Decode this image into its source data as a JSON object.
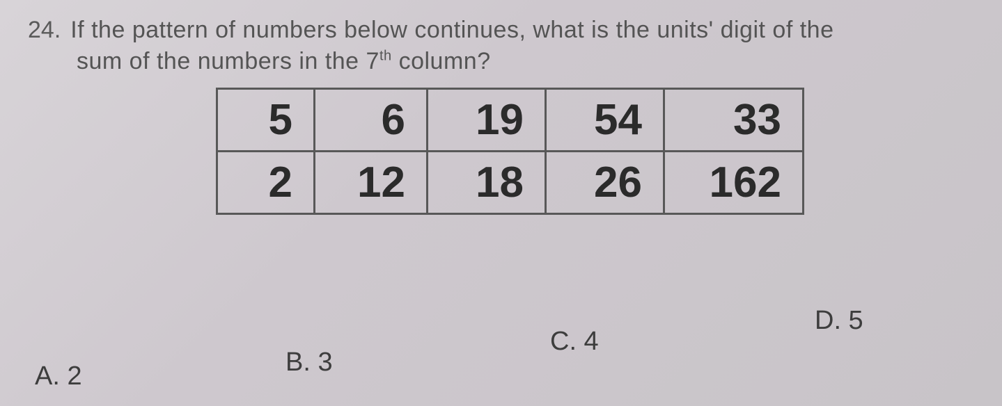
{
  "question": {
    "number": "24.",
    "line1": "If the pattern of numbers below continues, what is the units' digit of the",
    "line2_pre": "sum of the numbers in the 7",
    "line2_sup": "th",
    "line2_post": " column?"
  },
  "table": {
    "border_color": "#585858",
    "cell_font_size": 62,
    "cell_font_weight": 700,
    "cell_text_color": "#2b2b2b",
    "rows": [
      [
        "5",
        "6",
        "19",
        "54",
        "33"
      ],
      [
        "2",
        "12",
        "18",
        "26",
        "162"
      ]
    ]
  },
  "choices": {
    "A": "A. 2",
    "B": "B. 3",
    "C": "C. 4",
    "D": "D. 5"
  },
  "background_gradient": [
    "#d8d4d8",
    "#cec8ce",
    "#c8c4c8"
  ]
}
